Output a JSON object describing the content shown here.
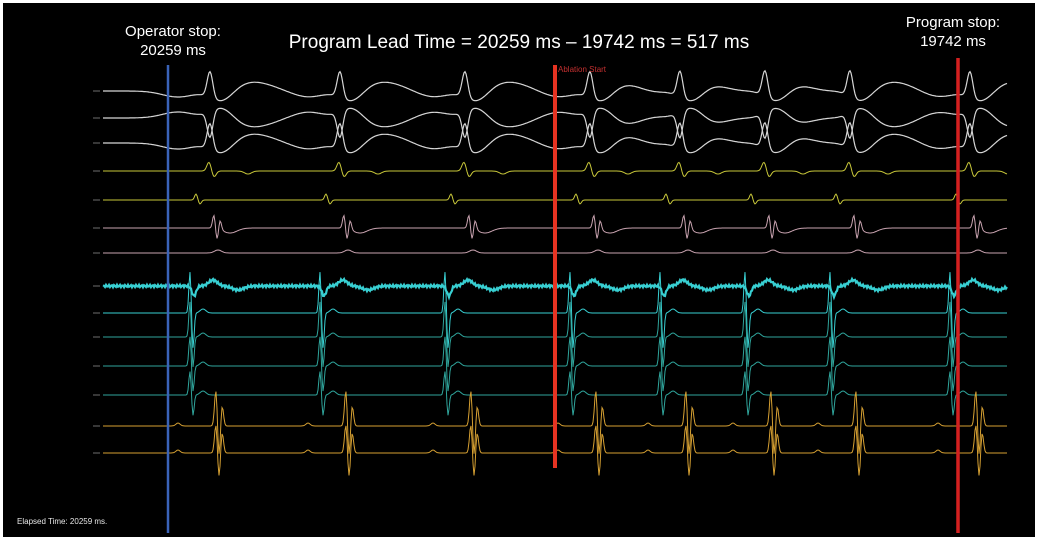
{
  "annotations": {
    "operator_stop_line1": "Operator stop:",
    "operator_stop_line2": "20259 ms",
    "program_stop_line1": "Program stop:",
    "program_stop_line2": "19742 ms",
    "lead_time_formula": "Program Lead Time = 20259 ms – 19742 ms = 517 ms",
    "ablation_start": "Ablation Start",
    "elapsed_time": "Elapsed Time: 20259 ms."
  },
  "colors": {
    "background": "#000000",
    "operator_stop_marker": "#3a63b8",
    "program_stop_marker": "#d42020",
    "ablation_start_marker": "#e63322",
    "surface_ecg": "#d6d6d6",
    "yellow_channel": "#c9c83a",
    "pink_channel": "#c9a3b0",
    "cyan_channel": "#38cfd2",
    "teal_channel": "#2fa59c",
    "orange_channel": "#d6a032"
  }
}
